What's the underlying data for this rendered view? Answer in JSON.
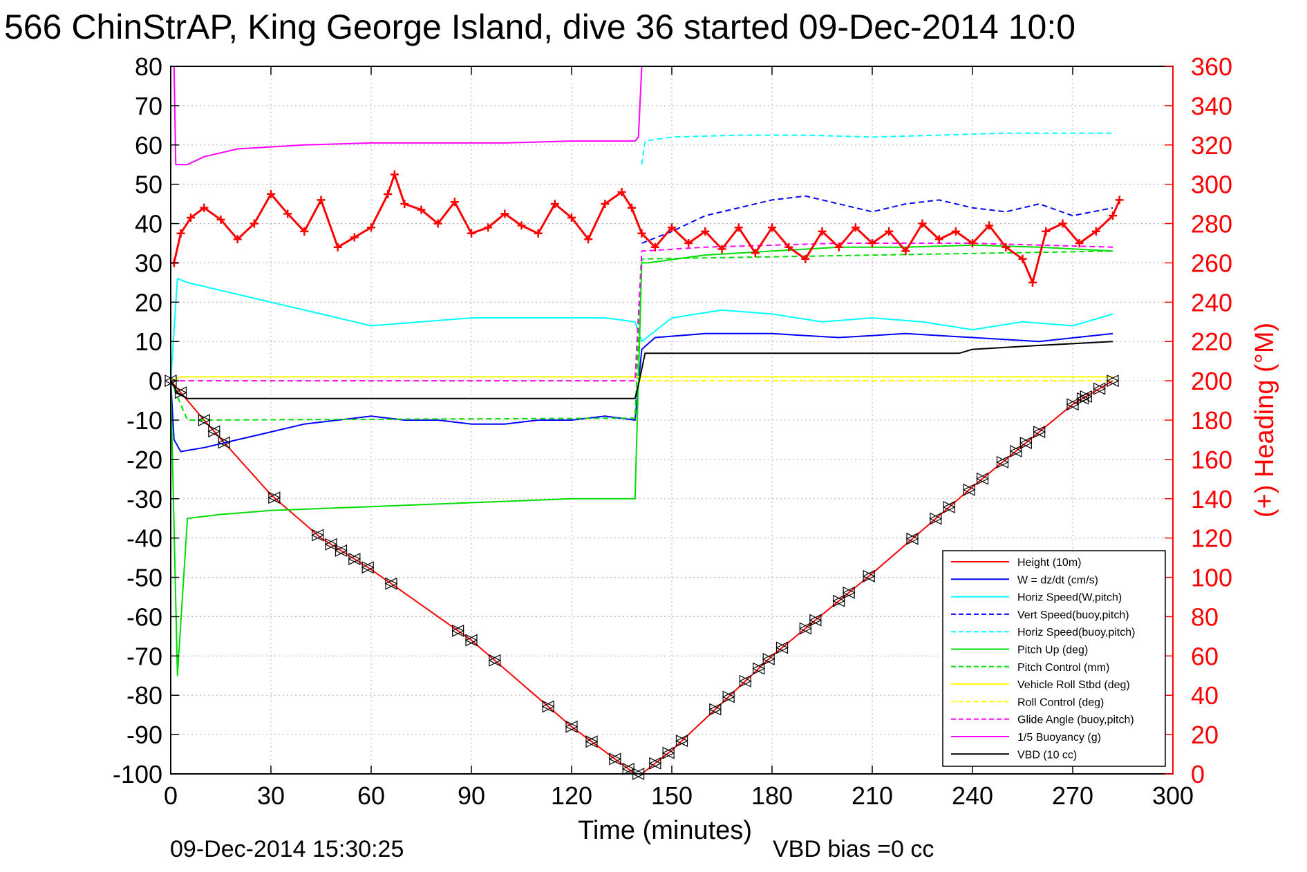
{
  "chart_data": {
    "type": "line",
    "title": "566 ChinStrAP, King George Island, dive 36 started 09-Dec-2014 10:0",
    "xlabel": "Time (minutes)",
    "ylabel_left": "",
    "ylabel_right": "(+) Heading (°M)",
    "xlim": [
      0,
      300
    ],
    "ylim_left": [
      -100,
      80
    ],
    "ylim_right": [
      0,
      360
    ],
    "x_ticks": [
      "0",
      "30",
      "60",
      "90",
      "120",
      "150",
      "180",
      "210",
      "240",
      "270",
      "300"
    ],
    "y_ticks_left": [
      "80",
      "70",
      "60",
      "50",
      "40",
      "30",
      "20",
      "10",
      "0",
      "-10",
      "-20",
      "-30",
      "-40",
      "-50",
      "-60",
      "-70",
      "-80",
      "-90",
      "-100"
    ],
    "y_ticks_right": [
      "360",
      "340",
      "320",
      "300",
      "280",
      "260",
      "240",
      "220",
      "200",
      "180",
      "160",
      "140",
      "120",
      "100",
      "80",
      "60",
      "40",
      "20",
      "0"
    ],
    "grid": true,
    "legend_position": "bottom-right",
    "colors": {
      "height": "#ff0000",
      "w": "#0000ff",
      "horiz": "#00ffff",
      "pitch": "#00dd00",
      "roll": "#ffff00",
      "glide": "#ff00ff",
      "buoy": "#ff00ff",
      "vbd": "#000000",
      "heading": "#ff0000",
      "right_axis": "#ff0000"
    },
    "series": [
      {
        "name": "Height (10m)",
        "color": "#ff0000",
        "dash": false,
        "x": [
          0,
          10,
          30,
          45,
          60,
          90,
          120,
          139,
          141,
          150,
          180,
          210,
          240,
          270,
          282
        ],
        "y": [
          0,
          -10,
          -29,
          -40,
          -48,
          -66,
          -88,
          -100,
          -100,
          -94,
          -70,
          -49,
          -27,
          -6,
          0
        ]
      },
      {
        "name": "W = dz/dt (cm/s)",
        "color": "#0000ff",
        "dash": false,
        "x": [
          0,
          1,
          3,
          10,
          20,
          30,
          40,
          50,
          60,
          70,
          80,
          90,
          100,
          110,
          120,
          130,
          139,
          141,
          145,
          160,
          180,
          200,
          220,
          240,
          260,
          282
        ],
        "y": [
          0,
          -15,
          -18,
          -17,
          -15,
          -13,
          -11,
          -10,
          -9,
          -10,
          -10,
          -11,
          -11,
          -10,
          -10,
          -9,
          -10,
          8,
          11,
          12,
          12,
          11,
          12,
          11,
          10,
          12
        ]
      },
      {
        "name": "Horiz Speed(W,pitch)",
        "color": "#00ffff",
        "dash": false,
        "x": [
          0,
          2,
          5,
          15,
          30,
          45,
          60,
          75,
          90,
          105,
          120,
          130,
          139,
          141,
          150,
          165,
          180,
          195,
          210,
          225,
          240,
          255,
          270,
          282
        ],
        "y": [
          0,
          26,
          25,
          23,
          20,
          17,
          14,
          15,
          16,
          16,
          16,
          16,
          15,
          10,
          16,
          18,
          17,
          15,
          16,
          15,
          13,
          15,
          14,
          17
        ]
      },
      {
        "name": "Vert Speed(buoy,pitch)",
        "color": "#0000ff",
        "dash": true,
        "x": [
          141,
          150,
          160,
          170,
          180,
          190,
          200,
          210,
          220,
          230,
          240,
          250,
          260,
          270,
          282
        ],
        "y": [
          35,
          38,
          42,
          44,
          46,
          47,
          45,
          43,
          45,
          46,
          44,
          43,
          45,
          42,
          44
        ]
      },
      {
        "name": "Horiz Speed(buoy,pitch)",
        "color": "#00ffff",
        "dash": true,
        "x": [
          141,
          142,
          150,
          170,
          190,
          210,
          230,
          250,
          270,
          282
        ],
        "y": [
          55,
          61,
          62,
          62.5,
          62.5,
          62,
          62.5,
          63,
          63,
          63
        ]
      },
      {
        "name": "Pitch Up (deg)",
        "color": "#00dd00",
        "dash": false,
        "x": [
          0,
          2,
          5,
          15,
          30,
          60,
          90,
          120,
          139,
          141,
          143,
          160,
          180,
          200,
          220,
          240,
          260,
          282
        ],
        "y": [
          0,
          -75,
          -35,
          -34,
          -33,
          -32,
          -31,
          -30,
          -30,
          30,
          30,
          32,
          33,
          34,
          34,
          34.5,
          34,
          33
        ]
      },
      {
        "name": "Pitch Control (mm)",
        "color": "#00dd00",
        "dash": true,
        "x": [
          0,
          5,
          139,
          141,
          282
        ],
        "y": [
          0,
          -10,
          -9.5,
          31,
          33
        ]
      },
      {
        "name": "Vehicle Roll Stbd (deg)",
        "color": "#ffff00",
        "dash": false,
        "x": [
          0,
          3,
          30,
          60,
          90,
          120,
          139,
          141,
          180,
          220,
          260,
          282
        ],
        "y": [
          0,
          1,
          1,
          1,
          1,
          1,
          1,
          1,
          1,
          1,
          1,
          1
        ]
      },
      {
        "name": "Roll Control (deg)",
        "color": "#ffff00",
        "dash": true,
        "x": [
          0,
          3,
          139,
          141,
          282
        ],
        "y": [
          0,
          0,
          0,
          0,
          0
        ]
      },
      {
        "name": "Glide Angle (buoy,pitch)",
        "color": "#ff00ff",
        "dash": true,
        "x": [
          0,
          139,
          141,
          160,
          200,
          240,
          282
        ],
        "y": [
          0,
          0,
          33,
          34,
          35,
          35,
          34
        ]
      },
      {
        "name": "1/5 Buoyancy (g)",
        "color": "#ff00ff",
        "dash": false,
        "x": [
          1,
          1.5,
          5,
          10,
          20,
          40,
          60,
          80,
          100,
          120,
          139,
          140,
          141,
          160,
          180,
          200,
          220,
          240,
          260,
          280,
          282
        ],
        "y": [
          80,
          55,
          55,
          57,
          59,
          60,
          60.5,
          60.5,
          60.5,
          61,
          61,
          62,
          80,
          80,
          80,
          80,
          80,
          80,
          80,
          80,
          80
        ]
      },
      {
        "name": "VBD (10 cc)",
        "color": "#000000",
        "dash": false,
        "x": [
          0,
          2,
          5,
          139,
          140,
          142,
          180,
          210,
          236,
          240,
          260,
          282
        ],
        "y": [
          0,
          -3,
          -4.5,
          -4.5,
          -1,
          7,
          7,
          7,
          7,
          8,
          9,
          10
        ]
      }
    ],
    "heading_series": {
      "name": "(+) Heading (°M)",
      "axis": "right",
      "color": "#ff0000",
      "x": [
        1,
        3,
        6,
        10,
        15,
        20,
        25,
        30,
        35,
        40,
        45,
        50,
        55,
        60,
        65,
        67,
        70,
        75,
        80,
        85,
        90,
        95,
        100,
        105,
        110,
        115,
        120,
        125,
        130,
        135,
        138,
        141,
        145,
        150,
        155,
        160,
        165,
        170,
        175,
        180,
        185,
        190,
        195,
        200,
        205,
        210,
        215,
        220,
        225,
        230,
        235,
        240,
        245,
        250,
        255,
        258,
        262,
        267,
        272,
        277,
        282,
        284
      ],
      "y": [
        260,
        275,
        283,
        288,
        282,
        272,
        280,
        295,
        285,
        276,
        292,
        268,
        273,
        278,
        295,
        305,
        290,
        287,
        280,
        291,
        275,
        278,
        285,
        279,
        275,
        290,
        283,
        272,
        290,
        296,
        288,
        275,
        268,
        278,
        270,
        276,
        267,
        278,
        265,
        278,
        268,
        262,
        276,
        268,
        278,
        270,
        276,
        266,
        280,
        272,
        276,
        270,
        279,
        268,
        262,
        250,
        276,
        280,
        270,
        276,
        284,
        292
      ]
    },
    "markers": {
      "type": "triangles",
      "color": "#000000",
      "series": "Height (10m)",
      "x": [
        0,
        3,
        10,
        13,
        16,
        31,
        44,
        48,
        51,
        55,
        59,
        66,
        86,
        90,
        97,
        113,
        120,
        126,
        133,
        137,
        140,
        145,
        149,
        153,
        163,
        167,
        172,
        176,
        179,
        183,
        190,
        193,
        200,
        203,
        209,
        222,
        229,
        233,
        239,
        243,
        249,
        253,
        256,
        260,
        270,
        273,
        274,
        278,
        282
      ]
    },
    "legend": [
      {
        "label": "Height (10m)",
        "color": "#ff0000",
        "dash": false
      },
      {
        "label": "W = dz/dt (cm/s)",
        "color": "#0000ff",
        "dash": false
      },
      {
        "label": "Horiz Speed(W,pitch)",
        "color": "#00ffff",
        "dash": false
      },
      {
        "label": "Vert Speed(buoy,pitch)",
        "color": "#0000ff",
        "dash": true
      },
      {
        "label": "Horiz Speed(buoy,pitch)",
        "color": "#00ffff",
        "dash": true
      },
      {
        "label": "Pitch Up (deg)",
        "color": "#00dd00",
        "dash": false
      },
      {
        "label": "Pitch Control (mm)",
        "color": "#00dd00",
        "dash": true
      },
      {
        "label": "Vehicle Roll Stbd (deg)",
        "color": "#ffff00",
        "dash": false
      },
      {
        "label": "Roll Control (deg)",
        "color": "#ffff00",
        "dash": true
      },
      {
        "label": "Glide Angle (buoy,pitch)",
        "color": "#ff00ff",
        "dash": true
      },
      {
        "label": "1/5 Buoyancy (g)",
        "color": "#ff00ff",
        "dash": false
      },
      {
        "label": "VBD (10 cc)",
        "color": "#000000",
        "dash": false
      }
    ],
    "annotations": {
      "timestamp": "09-Dec-2014 15:30:25",
      "vbd_bias": "VBD bias =0 cc"
    }
  }
}
